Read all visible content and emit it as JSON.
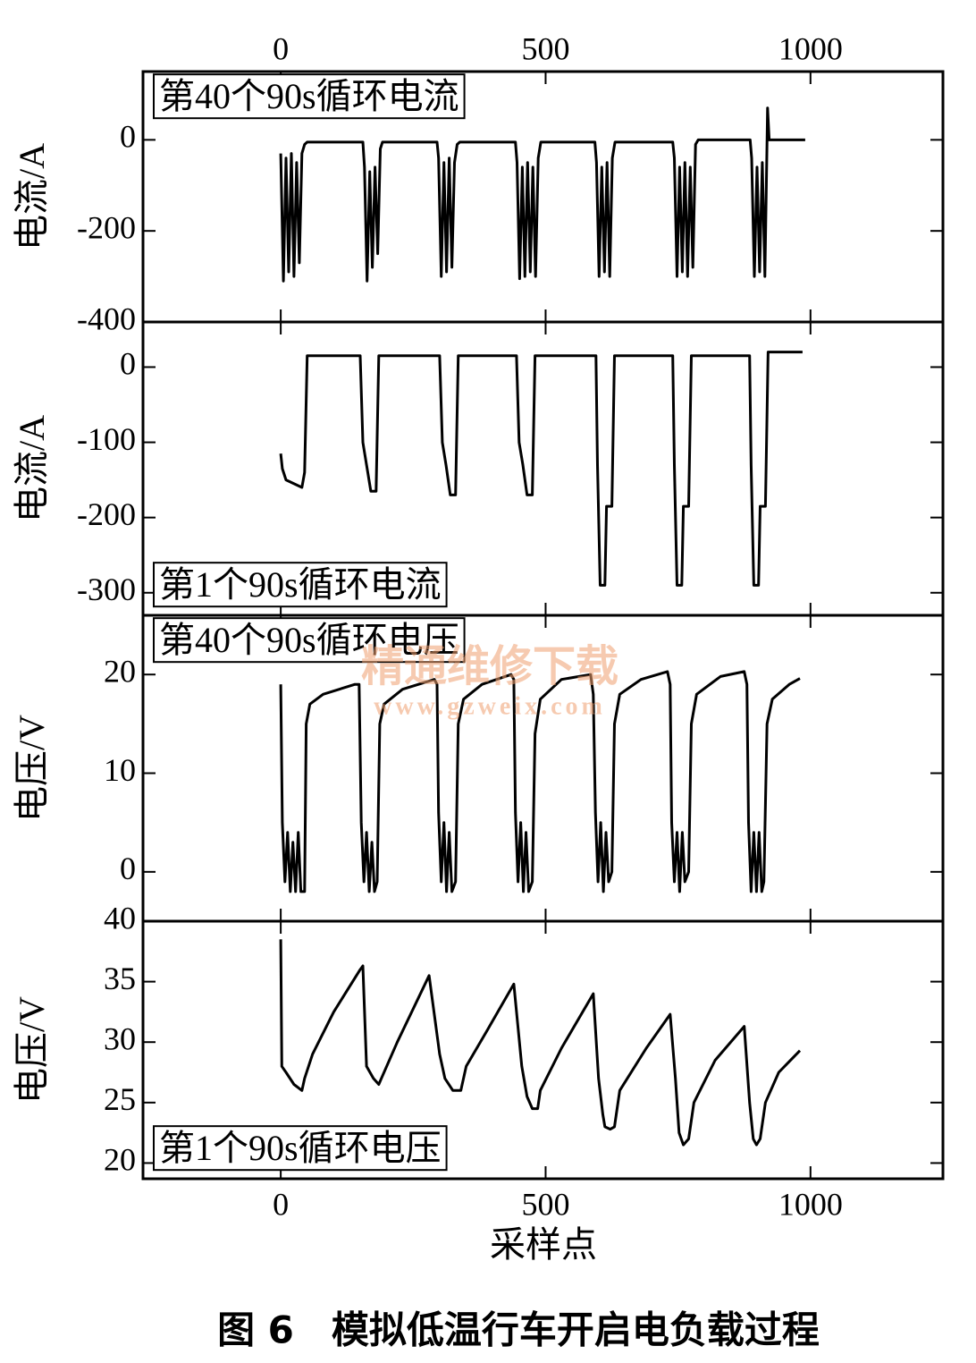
{
  "chart_data": [
    {
      "type": "line",
      "annotation": "第40个90s循环电流",
      "ylabel": "电流/A",
      "color": "#000000",
      "xlim": [
        -260,
        1250
      ],
      "xticks": [
        0,
        500,
        1000
      ],
      "ylim": [
        -400,
        150
      ],
      "yticks": [
        -400,
        -200,
        0
      ],
      "x": [
        0,
        5,
        10,
        15,
        20,
        25,
        30,
        35,
        40,
        45,
        50,
        155,
        158,
        163,
        168,
        173,
        178,
        183,
        188,
        192,
        295,
        298,
        303,
        308,
        313,
        318,
        323,
        328,
        333,
        338,
        443,
        446,
        451,
        456,
        461,
        466,
        471,
        476,
        481,
        486,
        491,
        593,
        596,
        601,
        606,
        611,
        616,
        621,
        626,
        631,
        740,
        743,
        748,
        753,
        758,
        763,
        768,
        773,
        778,
        783,
        788,
        886,
        889,
        894,
        899,
        904,
        909,
        914,
        919,
        922,
        990
      ],
      "values": [
        -30,
        -310,
        -40,
        -290,
        -30,
        -300,
        -50,
        -270,
        -30,
        -10,
        -5,
        -5,
        -60,
        -310,
        -70,
        -280,
        -60,
        -250,
        -20,
        -5,
        -5,
        -40,
        -300,
        -50,
        -290,
        -40,
        -280,
        -50,
        -10,
        -5,
        -5,
        -50,
        -305,
        -60,
        -300,
        -50,
        -290,
        -60,
        -300,
        -40,
        -5,
        -5,
        -50,
        -300,
        -60,
        -290,
        -50,
        -300,
        -40,
        -5,
        -5,
        -40,
        -300,
        -60,
        -290,
        -50,
        -300,
        -60,
        -280,
        -10,
        0,
        0,
        -40,
        -300,
        -60,
        -290,
        -50,
        -300,
        70,
        0,
        0
      ]
    },
    {
      "type": "line",
      "annotation": "第1个90s循环电流",
      "ylabel": "电流/A",
      "color": "#000000",
      "xlim": [
        -260,
        1250
      ],
      "xticks": [
        0,
        500,
        1000
      ],
      "ylim": [
        -330,
        60
      ],
      "yticks": [
        -300,
        -200,
        -100,
        0
      ],
      "x": [
        0,
        3,
        10,
        40,
        45,
        50,
        150,
        155,
        162,
        170,
        180,
        185,
        300,
        305,
        312,
        320,
        330,
        335,
        445,
        450,
        457,
        465,
        475,
        480,
        595,
        598,
        603,
        612,
        615,
        625,
        630,
        740,
        743,
        748,
        757,
        760,
        770,
        775,
        885,
        888,
        893,
        902,
        905,
        915,
        920,
        985
      ],
      "values": [
        -115,
        -135,
        -150,
        -160,
        -140,
        15,
        15,
        -100,
        -130,
        -165,
        -165,
        15,
        15,
        -100,
        -130,
        -170,
        -170,
        15,
        15,
        -100,
        -130,
        -170,
        -170,
        15,
        15,
        -130,
        -290,
        -290,
        -185,
        -185,
        15,
        15,
        -130,
        -290,
        -290,
        -185,
        -185,
        15,
        15,
        -130,
        -290,
        -290,
        -185,
        -185,
        20,
        20
      ]
    },
    {
      "type": "line",
      "annotation": "第40个90s循环电压",
      "ylabel": "电压/V",
      "color": "#000000",
      "xlim": [
        -260,
        1250
      ],
      "xticks": [
        0,
        500,
        1000
      ],
      "ylim": [
        -5,
        26
      ],
      "yticks": [
        0,
        10,
        20
      ],
      "x": [
        0,
        3,
        8,
        13,
        18,
        23,
        28,
        33,
        38,
        45,
        48,
        55,
        80,
        140,
        148,
        152,
        157,
        162,
        167,
        172,
        177,
        182,
        187,
        195,
        230,
        290,
        295,
        298,
        303,
        308,
        313,
        318,
        323,
        330,
        335,
        345,
        380,
        435,
        440,
        443,
        448,
        453,
        458,
        463,
        468,
        475,
        480,
        490,
        530,
        585,
        590,
        594,
        599,
        604,
        609,
        614,
        619,
        625,
        630,
        640,
        680,
        730,
        735,
        738,
        743,
        748,
        753,
        758,
        763,
        770,
        775,
        785,
        830,
        875,
        880,
        883,
        888,
        893,
        898,
        903,
        908,
        912,
        918,
        928,
        960,
        980
      ],
      "values": [
        19,
        5,
        -1,
        4,
        -2,
        3,
        -2,
        4,
        -2,
        -2,
        15,
        17,
        18,
        19,
        19,
        5,
        -1,
        4,
        -2,
        3,
        -2,
        -1,
        15,
        17,
        18.5,
        19.5,
        19,
        6,
        -1,
        5,
        -2,
        4,
        -2,
        -1,
        15,
        17.5,
        19,
        20,
        19.5,
        6,
        -1,
        5,
        -2,
        4,
        -2,
        -1,
        14,
        17.5,
        19.5,
        20,
        18,
        6,
        -1,
        5,
        -2,
        4,
        -1,
        0,
        15,
        18,
        19.5,
        20.3,
        19,
        5,
        -1,
        4,
        -2,
        4,
        -1,
        0,
        15,
        18,
        19.8,
        20.3,
        19,
        5,
        -2,
        4,
        -2,
        4,
        -2,
        -1,
        15,
        17.5,
        19,
        19.6
      ]
    },
    {
      "type": "line",
      "annotation": "第1个90s循环电压",
      "ylabel": "电压/V",
      "xlabel": "采样点",
      "color": "#000000",
      "xlim": [
        -260,
        1250
      ],
      "xticks": [
        0,
        500,
        1000
      ],
      "ylim": [
        18.7,
        40
      ],
      "yticks": [
        20,
        25,
        30,
        35,
        40
      ],
      "x": [
        0,
        2,
        10,
        25,
        40,
        45,
        60,
        100,
        150,
        155,
        162,
        175,
        185,
        190,
        220,
        280,
        300,
        310,
        325,
        340,
        350,
        390,
        440,
        455,
        465,
        475,
        485,
        490,
        530,
        590,
        600,
        608,
        612,
        622,
        630,
        640,
        690,
        735,
        745,
        752,
        760,
        770,
        780,
        820,
        875,
        885,
        892,
        898,
        905,
        915,
        940,
        980
      ],
      "values": [
        38.5,
        28,
        27.5,
        26.5,
        26,
        27,
        29,
        32.5,
        36,
        36.3,
        28,
        27,
        26.5,
        27,
        30,
        35.5,
        29,
        27,
        26,
        26,
        28,
        31,
        34.8,
        28,
        25.5,
        24.5,
        24.5,
        26,
        29.5,
        34,
        27,
        24,
        23,
        22.8,
        23,
        26,
        29.5,
        32.3,
        27,
        22.5,
        21.5,
        22,
        25,
        28.5,
        31.3,
        25,
        22,
        21.5,
        22,
        25,
        27.5,
        29.3
      ]
    }
  ],
  "caption": "图 6　模拟低温行车开启电负载过程",
  "watermark": [
    "精通维修下载",
    "www.gzweix.com"
  ]
}
